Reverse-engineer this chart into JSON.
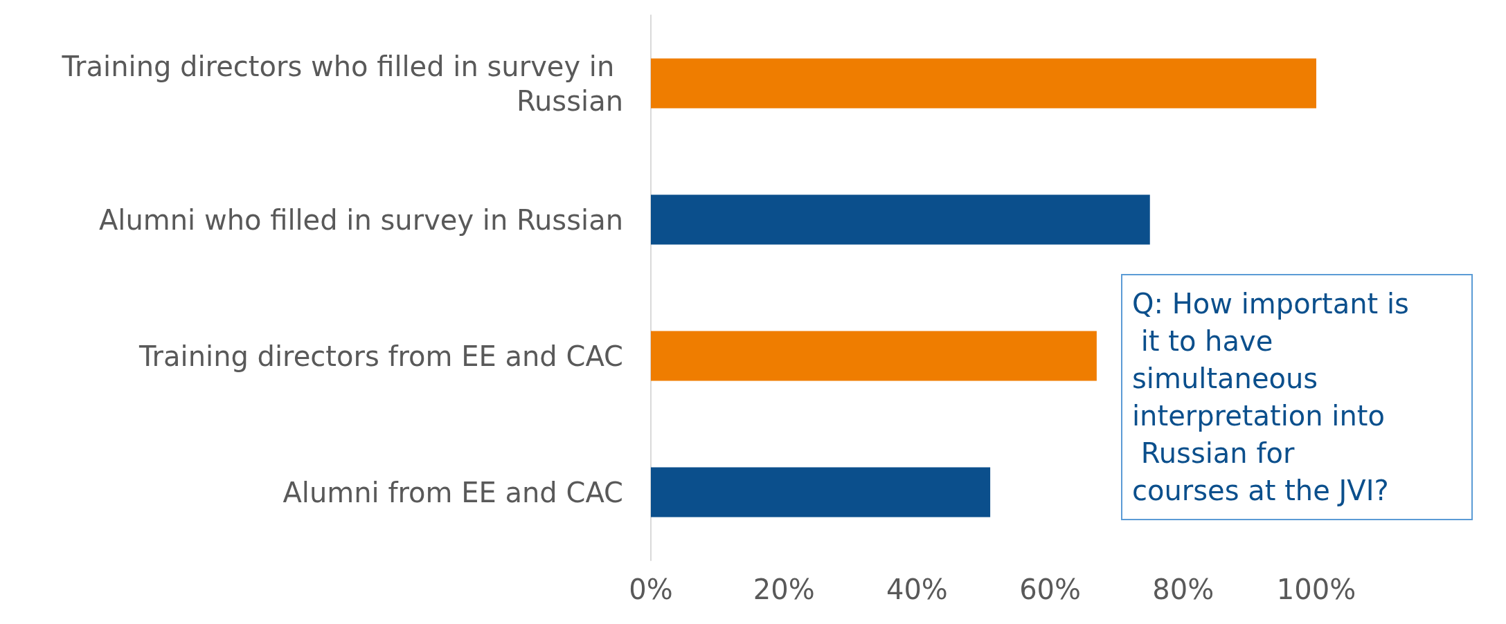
{
  "chart_data": {
    "type": "bar",
    "orientation": "horizontal",
    "categories": [
      "Training directors who filled in survey in Russian",
      "Alumni who filled in survey in Russian",
      "Training directors from EE and CAC",
      "Alumni from EE and CAC"
    ],
    "values": [
      100,
      75,
      67,
      51
    ],
    "colors": [
      "#ef7d00",
      "#0b4f8c",
      "#ef7d00",
      "#0b4f8c"
    ],
    "xlim": [
      0,
      100
    ],
    "xticks": [
      {
        "value": 0,
        "label": "0%"
      },
      {
        "value": 20,
        "label": "20%"
      },
      {
        "value": 40,
        "label": "40%"
      },
      {
        "value": 60,
        "label": "60%"
      },
      {
        "value": 80,
        "label": "80%"
      },
      {
        "value": 100,
        "label": "100%"
      }
    ],
    "annotations": [
      "Q: How important is it to have simultaneous interpretation into Russian for courses at the JVI?"
    ]
  }
}
